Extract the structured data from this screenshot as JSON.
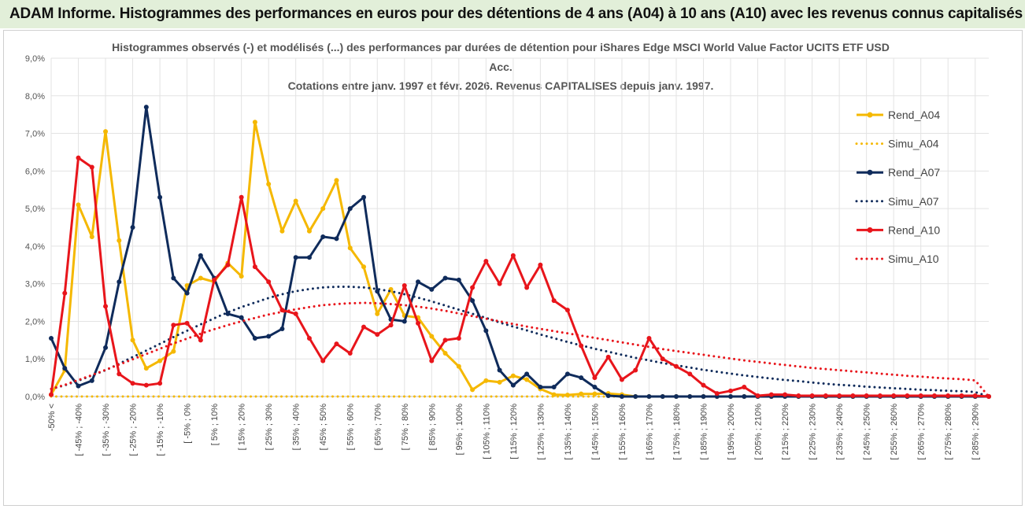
{
  "banner": {
    "title": "ADAM Informe. Histogrammes des performances en euros pour des détentions de 4 ans (A04) à 10 ans (A10) avec les revenus connus capitalisés"
  },
  "chart_data": {
    "type": "line",
    "title_lines": [
      "Histogrammes observés (-) et modélisés (...) des performances par durées de détention pour iShares Edge MSCI World Value Factor UCITS ETF USD",
      "Acc.",
      "Cotations entre janv. 1997 et févr. 2026. Revenus CAPITALISES depuis janv. 1997."
    ],
    "xlabel": "",
    "ylabel": "",
    "ylim": [
      0,
      9
    ],
    "y_ticks": [
      "0,0%",
      "1,0%",
      "2,0%",
      "3,0%",
      "4,0%",
      "5,0%",
      "6,0%",
      "7,0%",
      "8,0%",
      "9,0%"
    ],
    "x_tick_labels": [
      "-50% <",
      "[ -45% ; -40%",
      "[ -35% ; -30%",
      "[ -25% ; -20%",
      "[ -15% ; -10%",
      "[ -5% ; 0%",
      "[ 5% ; 10%",
      "[ 15% ; 20%",
      "[ 25% ; 30%",
      "[ 35% ; 40%",
      "[ 45% ; 50%",
      "[ 55% ; 60%",
      "[ 65% ; 70%",
      "[ 75% ; 80%",
      "[ 85% ; 90%",
      "[ 95% ; 100%",
      "[ 105% ; 110%",
      "[ 115% ; 120%",
      "[ 125% ; 130%",
      "[ 135% ; 140%",
      "[ 145% ; 150%",
      "[ 155% ; 160%",
      "[ 165% ; 170%",
      "[ 175% ; 180%",
      "[ 185% ; 190%",
      "[ 195% ; 200%",
      "[ 205% ; 210%",
      "[ 215% ; 220%",
      "[ 225% ; 230%",
      "[ 235% ; 240%",
      "[ 245% ; 250%",
      "[ 255% ; 260%",
      "[ 265% ; 270%",
      "[ 275% ; 280%",
      "[ 285% ; 290%"
    ],
    "n_points": 70,
    "series": [
      {
        "name": "Rend_A04",
        "style": "solid",
        "color": "#f5b800",
        "values": [
          0.05,
          0.7,
          5.1,
          4.25,
          7.05,
          4.15,
          1.5,
          0.75,
          0.95,
          1.2,
          2.95,
          3.15,
          3.05,
          3.55,
          3.2,
          7.3,
          5.65,
          4.4,
          5.2,
          4.4,
          5.0,
          5.75,
          3.95,
          3.45,
          2.2,
          2.85,
          2.15,
          2.1,
          1.6,
          1.15,
          0.8,
          0.18,
          0.42,
          0.38,
          0.55,
          0.45,
          0.2,
          0.05,
          0.04,
          0.07,
          0.07,
          0.08,
          0.05,
          0.0,
          0.0,
          0.0,
          0.0,
          0.0,
          0.0,
          0.0,
          0.0,
          0.0,
          0.0,
          0.0,
          0.0,
          0.0,
          0.0,
          0.0,
          0.0,
          0.0,
          0.0,
          0.0,
          0.0,
          0.0,
          0.0,
          0.0,
          0.0,
          0.0,
          0.0,
          0.0
        ]
      },
      {
        "name": "Simu_A04",
        "style": "dotted",
        "color": "#f5b800",
        "values": [
          0.0,
          0.0,
          0.0,
          0.0,
          0.0,
          0.0,
          0.0,
          0.0,
          0.0,
          0.0,
          0.0,
          0.0,
          0.0,
          0.0,
          0.0,
          0.0,
          0.0,
          0.0,
          0.0,
          0.0,
          0.0,
          0.0,
          0.0,
          0.0,
          0.0,
          0.0,
          0.0,
          0.0,
          0.0,
          0.0,
          0.0,
          0.0,
          0.0,
          0.0,
          0.0,
          0.0,
          0.0,
          0.0,
          0.0,
          0.0,
          0.0,
          0.0,
          0.0,
          0.0,
          0.0,
          0.0,
          0.0,
          0.0,
          0.0,
          0.0,
          0.0,
          0.0,
          0.0,
          0.0,
          0.0,
          0.0,
          0.0,
          0.0,
          0.0,
          0.0,
          0.0,
          0.0,
          0.0,
          0.0,
          0.0,
          0.0,
          0.0,
          0.0,
          0.0,
          0.0
        ]
      },
      {
        "name": "Rend_A07",
        "style": "solid",
        "color": "#0f2b5b",
        "values": [
          1.55,
          0.75,
          0.28,
          0.42,
          1.3,
          3.05,
          4.5,
          7.7,
          5.3,
          3.15,
          2.75,
          3.75,
          3.15,
          2.2,
          2.1,
          1.55,
          1.6,
          1.8,
          3.7,
          3.7,
          4.25,
          4.2,
          5.0,
          5.3,
          2.8,
          2.05,
          2.0,
          3.05,
          2.85,
          3.15,
          3.1,
          2.55,
          1.75,
          0.7,
          0.3,
          0.6,
          0.25,
          0.25,
          0.6,
          0.5,
          0.25,
          0.02,
          0.0,
          0.0,
          0.0,
          0.0,
          0.0,
          0.0,
          0.0,
          0.0,
          0.0,
          0.0,
          0.0,
          0.0,
          0.0,
          0.0,
          0.0,
          0.0,
          0.0,
          0.0,
          0.0,
          0.0,
          0.0,
          0.0,
          0.0,
          0.0,
          0.0,
          0.0,
          0.0,
          0.0
        ]
      },
      {
        "name": "Simu_A07",
        "style": "dotted",
        "color": "#0f2b5b",
        "values": [
          0.2,
          0.3,
          0.42,
          0.56,
          0.7,
          0.87,
          1.05,
          1.22,
          1.4,
          1.58,
          1.75,
          1.92,
          2.08,
          2.24,
          2.38,
          2.5,
          2.62,
          2.72,
          2.8,
          2.86,
          2.9,
          2.92,
          2.92,
          2.9,
          2.86,
          2.8,
          2.72,
          2.63,
          2.53,
          2.42,
          2.31,
          2.2,
          2.09,
          1.97,
          1.86,
          1.76,
          1.65,
          1.55,
          1.45,
          1.36,
          1.27,
          1.19,
          1.11,
          1.03,
          0.96,
          0.89,
          0.83,
          0.77,
          0.71,
          0.66,
          0.61,
          0.56,
          0.52,
          0.48,
          0.44,
          0.41,
          0.37,
          0.34,
          0.31,
          0.29,
          0.26,
          0.24,
          0.22,
          0.2,
          0.18,
          0.17,
          0.15,
          0.14,
          0.12,
          0.0
        ]
      },
      {
        "name": "Rend_A10",
        "style": "solid",
        "color": "#e8151b",
        "values": [
          0.05,
          2.75,
          6.35,
          6.1,
          2.4,
          0.6,
          0.35,
          0.3,
          0.35,
          1.9,
          1.95,
          1.5,
          3.1,
          3.5,
          5.3,
          3.45,
          3.05,
          2.3,
          2.2,
          1.55,
          0.95,
          1.4,
          1.15,
          1.85,
          1.65,
          1.9,
          2.95,
          1.95,
          0.95,
          1.5,
          1.55,
          2.9,
          3.6,
          3.0,
          3.75,
          2.9,
          3.5,
          2.55,
          2.3,
          1.35,
          0.5,
          1.05,
          0.45,
          0.7,
          1.55,
          1.0,
          0.8,
          0.6,
          0.3,
          0.08,
          0.15,
          0.25,
          0.02,
          0.05,
          0.05,
          0.02,
          0.02,
          0.02,
          0.02,
          0.02,
          0.02,
          0.02,
          0.02,
          0.02,
          0.02,
          0.02,
          0.02,
          0.02,
          0.02,
          0.0
        ]
      },
      {
        "name": "Simu_A10",
        "style": "dotted",
        "color": "#e8151b",
        "values": [
          0.2,
          0.31,
          0.44,
          0.57,
          0.71,
          0.85,
          0.99,
          1.13,
          1.27,
          1.41,
          1.54,
          1.67,
          1.79,
          1.9,
          2.0,
          2.09,
          2.18,
          2.25,
          2.32,
          2.38,
          2.43,
          2.46,
          2.48,
          2.49,
          2.48,
          2.46,
          2.43,
          2.39,
          2.34,
          2.28,
          2.21,
          2.14,
          2.07,
          2.0,
          1.93,
          1.86,
          1.8,
          1.74,
          1.68,
          1.62,
          1.56,
          1.5,
          1.44,
          1.38,
          1.32,
          1.26,
          1.21,
          1.16,
          1.11,
          1.06,
          1.01,
          0.96,
          0.92,
          0.88,
          0.84,
          0.8,
          0.76,
          0.73,
          0.7,
          0.67,
          0.64,
          0.61,
          0.58,
          0.55,
          0.53,
          0.5,
          0.48,
          0.46,
          0.43,
          0.0
        ]
      }
    ],
    "legend_position": "right"
  }
}
